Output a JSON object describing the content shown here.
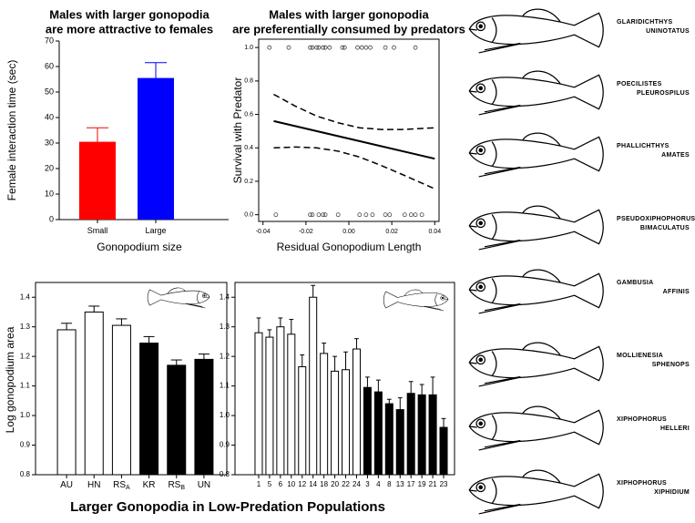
{
  "chart_data": [
    {
      "type": "bar",
      "title": [
        "Males with larger gonopodia",
        "are more attractive to females"
      ],
      "y_label": "Female interaction time (sec)",
      "x_label": "Gonopodium size",
      "categories": [
        "Small",
        "Large"
      ],
      "values": [
        30.5,
        55.5
      ],
      "errors": [
        5.5,
        6
      ],
      "colors": [
        "#ff0000",
        "#0000ff"
      ],
      "ylim": [
        0,
        70
      ],
      "yticks": [
        0,
        10,
        20,
        30,
        40,
        50,
        60,
        70
      ]
    },
    {
      "type": "scatter",
      "title": [
        "Males with larger gonopodia",
        "are preferentially consumed by predators"
      ],
      "y_label": "Survival with Predator",
      "x_label": "Residual Gonopodium Length",
      "points": {
        "x": [
          -0.037,
          -0.028,
          -0.018,
          -0.017,
          -0.015,
          -0.014,
          -0.012,
          -0.011,
          -0.009,
          -0.003,
          -0.002,
          0.004,
          0.006,
          0.008,
          0.01,
          0.017,
          0.021,
          0.031,
          -0.034,
          -0.018,
          -0.017,
          -0.014,
          -0.012,
          -0.011,
          -0.005,
          0.005,
          0.008,
          0.011,
          0.017,
          0.019,
          0.026,
          0.029,
          0.031,
          0.034
        ],
        "values": [
          1,
          1,
          1,
          1,
          1,
          1,
          1,
          1,
          1,
          1,
          1,
          1,
          1,
          1,
          1,
          1,
          1,
          1,
          0,
          0,
          0,
          0,
          0,
          0,
          0,
          0,
          0,
          0,
          0,
          0,
          0,
          0,
          0,
          0
        ]
      },
      "series": [
        {
          "style": "solid",
          "x": [
            -0.035,
            0.04
          ],
          "values": [
            0.56,
            0.335
          ]
        },
        {
          "style": "dashed",
          "x": [
            -0.035,
            -0.025,
            -0.015,
            -0.005,
            0.005,
            0.015,
            0.025,
            0.04
          ],
          "values": [
            0.72,
            0.65,
            0.59,
            0.55,
            0.52,
            0.51,
            0.51,
            0.52
          ]
        },
        {
          "style": "dashed",
          "x": [
            -0.035,
            -0.025,
            -0.015,
            -0.005,
            0.005,
            0.015,
            0.025,
            0.04
          ],
          "values": [
            0.4,
            0.405,
            0.4,
            0.38,
            0.345,
            0.295,
            0.24,
            0.155
          ]
        }
      ],
      "xlim": [
        -0.042,
        0.042
      ],
      "xticks": [
        -0.04,
        -0.02,
        {
          "value": 0,
          "label": "0.00"
        },
        0.02,
        0.04
      ],
      "ylim": [
        -0.04,
        1.05
      ],
      "yticks": [
        {
          "value": 0,
          "label": "0.0"
        },
        0.2,
        0.4,
        0.6,
        0.8,
        {
          "value": 1,
          "label": "1.0"
        }
      ]
    },
    {
      "type": "bar",
      "y_label": "Log gonopodium area",
      "categories": [
        "AU",
        "HN",
        "RS",
        "KR",
        "RS",
        "UN"
      ],
      "subscripts": {
        "2": "A",
        "4": "B"
      },
      "values": [
        1.29,
        1.35,
        1.305,
        1.245,
        1.17,
        1.19
      ],
      "errors": [
        0.022,
        0.02,
        0.022,
        0.022,
        0.018,
        0.018
      ],
      "colors": [
        "#ffffff",
        "#ffffff",
        "#ffffff",
        "#000000",
        "#000000",
        "#000000"
      ],
      "ylim": [
        0.8,
        1.45
      ],
      "yticks": [
        0.8,
        0.9,
        {
          "value": 1,
          "label": "1.0"
        },
        1.1,
        1.2,
        1.3,
        1.4
      ]
    },
    {
      "type": "bar",
      "categories": [
        "1",
        "5",
        "6",
        "10",
        "12",
        "14",
        "18",
        "20",
        "22",
        "24",
        "3",
        "4",
        "8",
        "13",
        "17",
        "19",
        "21",
        "23"
      ],
      "values": [
        1.28,
        1.265,
        1.3,
        1.275,
        1.165,
        1.4,
        1.21,
        1.15,
        1.155,
        1.225,
        1.095,
        1.08,
        1.04,
        1.02,
        1.075,
        1.07,
        1.07,
        0.96
      ],
      "errors": [
        0.05,
        0.025,
        0.03,
        0.05,
        0.04,
        0.04,
        0.035,
        0.05,
        0.06,
        0.035,
        0.035,
        0.04,
        0.015,
        0.04,
        0.04,
        0.035,
        0.06,
        0.03
      ],
      "colors": [
        "#ffffff",
        "#ffffff",
        "#ffffff",
        "#ffffff",
        "#ffffff",
        "#ffffff",
        "#ffffff",
        "#ffffff",
        "#ffffff",
        "#ffffff",
        "#000000",
        "#000000",
        "#000000",
        "#000000",
        "#000000",
        "#000000",
        "#000000",
        "#000000"
      ],
      "ylim": [
        0.8,
        1.45
      ],
      "yticks": [
        0.8,
        0.9,
        {
          "value": 1,
          "label": "1.0"
        },
        1.1,
        1.2,
        1.3,
        1.4
      ]
    }
  ],
  "figure_title": "Larger Gonopodia in Low-Predation Populations",
  "species": [
    [
      "GLARIDICHTHYS",
      "UNINOTATUS"
    ],
    [
      "POECILISTES",
      "PLEUROSPILUS"
    ],
    [
      "PHALLICHTHYS",
      "AMATES"
    ],
    [
      "PSEUDOXIPHOPHORUS",
      "BIMACULATUS"
    ],
    [
      "GAMBUSIA",
      "AFFINIS"
    ],
    [
      "MOLLIENESIA",
      "SPHENOPS"
    ],
    [
      "XIPHOPHORUS",
      "HELLERI"
    ],
    [
      "XIPHOPHORUS",
      "XIPHIDIUM"
    ]
  ]
}
